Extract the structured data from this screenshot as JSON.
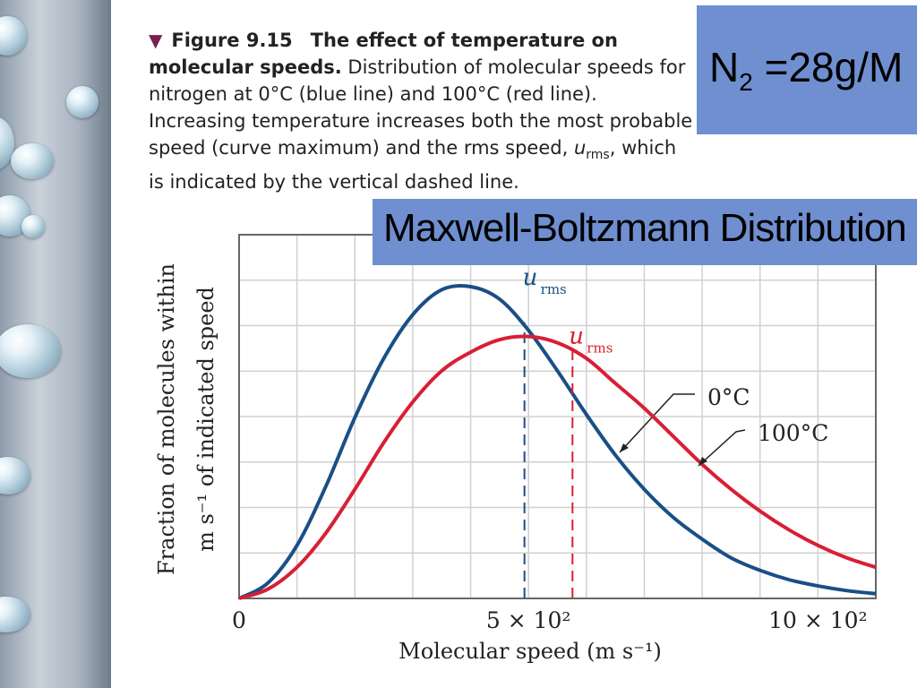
{
  "caption": {
    "figure_label": "Figure 9.15",
    "figure_title": "The effect of temperature on molecular speeds.",
    "text_1": "Distribution of molecular speeds for nitrogen at 0°C (blue line) and 100°C (red line). Increasing temperature increases both the most probable speed (curve maximum) and the rms speed, ",
    "u_symbol": "u",
    "u_subscript": "rms",
    "text_2": ", which is indicated by the vertical dashed line."
  },
  "n2_box": {
    "prefix": "N",
    "subscript": "2",
    "suffix": " =28g/M"
  },
  "title_box": {
    "text": "Maxwell-Boltzmann Distribution"
  },
  "colors": {
    "blue_curve": "#1a4f86",
    "red_curve": "#d81f35",
    "box_bg": "#6f8fd0"
  },
  "chart_data": {
    "type": "line",
    "xlabel": "Molecular speed (m s⁻¹)",
    "ylabel_line1": "Fraction of molecules within",
    "ylabel_line2": "m s⁻¹ of indicated speed",
    "xlim": [
      0,
      1100
    ],
    "ylim": [
      0,
      1
    ],
    "x_ticks": [
      {
        "value": 0,
        "label": "0"
      },
      {
        "value": 500,
        "label": "5 × 10²"
      },
      {
        "value": 1000,
        "label": "10 × 10²"
      }
    ],
    "grid": true,
    "series": [
      {
        "name": "0°C",
        "color": "#1a4f86",
        "x": [
          0,
          50,
          100,
          150,
          200,
          250,
          300,
          350,
          400,
          450,
          500,
          550,
          600,
          650,
          700,
          750,
          800,
          850,
          900,
          950,
          1000,
          1050,
          1100
        ],
        "y": [
          0,
          0.05,
          0.17,
          0.36,
          0.58,
          0.77,
          0.91,
          0.99,
          1.0,
          0.96,
          0.86,
          0.73,
          0.59,
          0.46,
          0.35,
          0.26,
          0.19,
          0.13,
          0.09,
          0.06,
          0.04,
          0.025,
          0.015
        ],
        "u_rms": 493,
        "u_rms_label": "u",
        "u_rms_sub": "rms",
        "callout": "0°C"
      },
      {
        "name": "100°C",
        "color": "#d81f35",
        "x": [
          0,
          50,
          100,
          150,
          200,
          250,
          300,
          350,
          400,
          450,
          500,
          550,
          600,
          650,
          700,
          750,
          800,
          850,
          900,
          950,
          1000,
          1050,
          1100
        ],
        "y": [
          0,
          0.03,
          0.1,
          0.21,
          0.35,
          0.5,
          0.63,
          0.73,
          0.79,
          0.83,
          0.84,
          0.82,
          0.77,
          0.69,
          0.61,
          0.52,
          0.43,
          0.35,
          0.28,
          0.22,
          0.17,
          0.13,
          0.1
        ],
        "u_rms": 576,
        "u_rms_label": "u",
        "u_rms_sub": "rms",
        "callout": "100°C"
      }
    ]
  }
}
